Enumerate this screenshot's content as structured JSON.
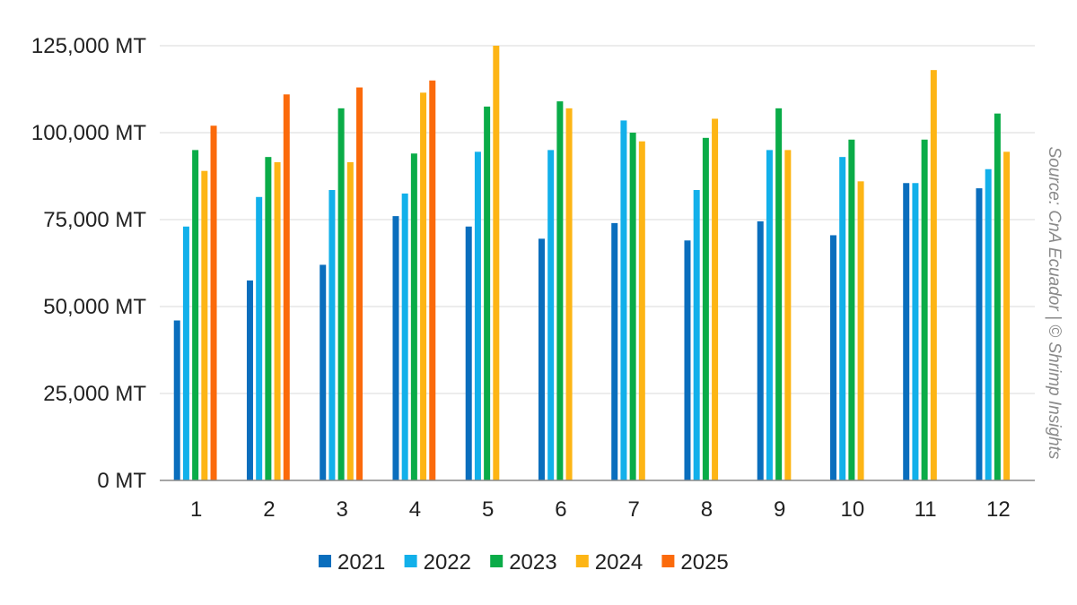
{
  "chart_data": {
    "type": "bar",
    "categories": [
      "1",
      "2",
      "3",
      "4",
      "5",
      "6",
      "7",
      "8",
      "9",
      "10",
      "11",
      "12"
    ],
    "y_ticks": [
      "0 MT",
      "25,000 MT",
      "50,000 MT",
      "75,000 MT",
      "100,000 MT",
      "125,000 MT"
    ],
    "ylim": [
      0,
      125000
    ],
    "grid": true,
    "legend_position": "bottom",
    "series": [
      {
        "name": "2021",
        "color": "#0a6ebd",
        "values": [
          46000,
          57500,
          62000,
          76000,
          73000,
          69500,
          74000,
          69000,
          74500,
          70500,
          85500,
          84000
        ]
      },
      {
        "name": "2022",
        "color": "#12b0ea",
        "values": [
          73000,
          81500,
          83500,
          82500,
          94500,
          95000,
          103500,
          83500,
          95000,
          93000,
          85500,
          89500
        ]
      },
      {
        "name": "2023",
        "color": "#0aac48",
        "values": [
          95000,
          93000,
          107000,
          94000,
          107500,
          109000,
          100000,
          98500,
          107000,
          98000,
          98000,
          105500
        ]
      },
      {
        "name": "2024",
        "color": "#fdb515",
        "values": [
          89000,
          91500,
          91500,
          111500,
          125000,
          107000,
          97500,
          104000,
          95000,
          86000,
          118000,
          94500
        ]
      },
      {
        "name": "2025",
        "color": "#fb6a0b",
        "values": [
          102000,
          111000,
          113000,
          115000,
          null,
          null,
          null,
          null,
          null,
          null,
          null,
          null
        ]
      }
    ]
  },
  "source_text": "Source: CnA Ecuador | © Shrimp Insights"
}
